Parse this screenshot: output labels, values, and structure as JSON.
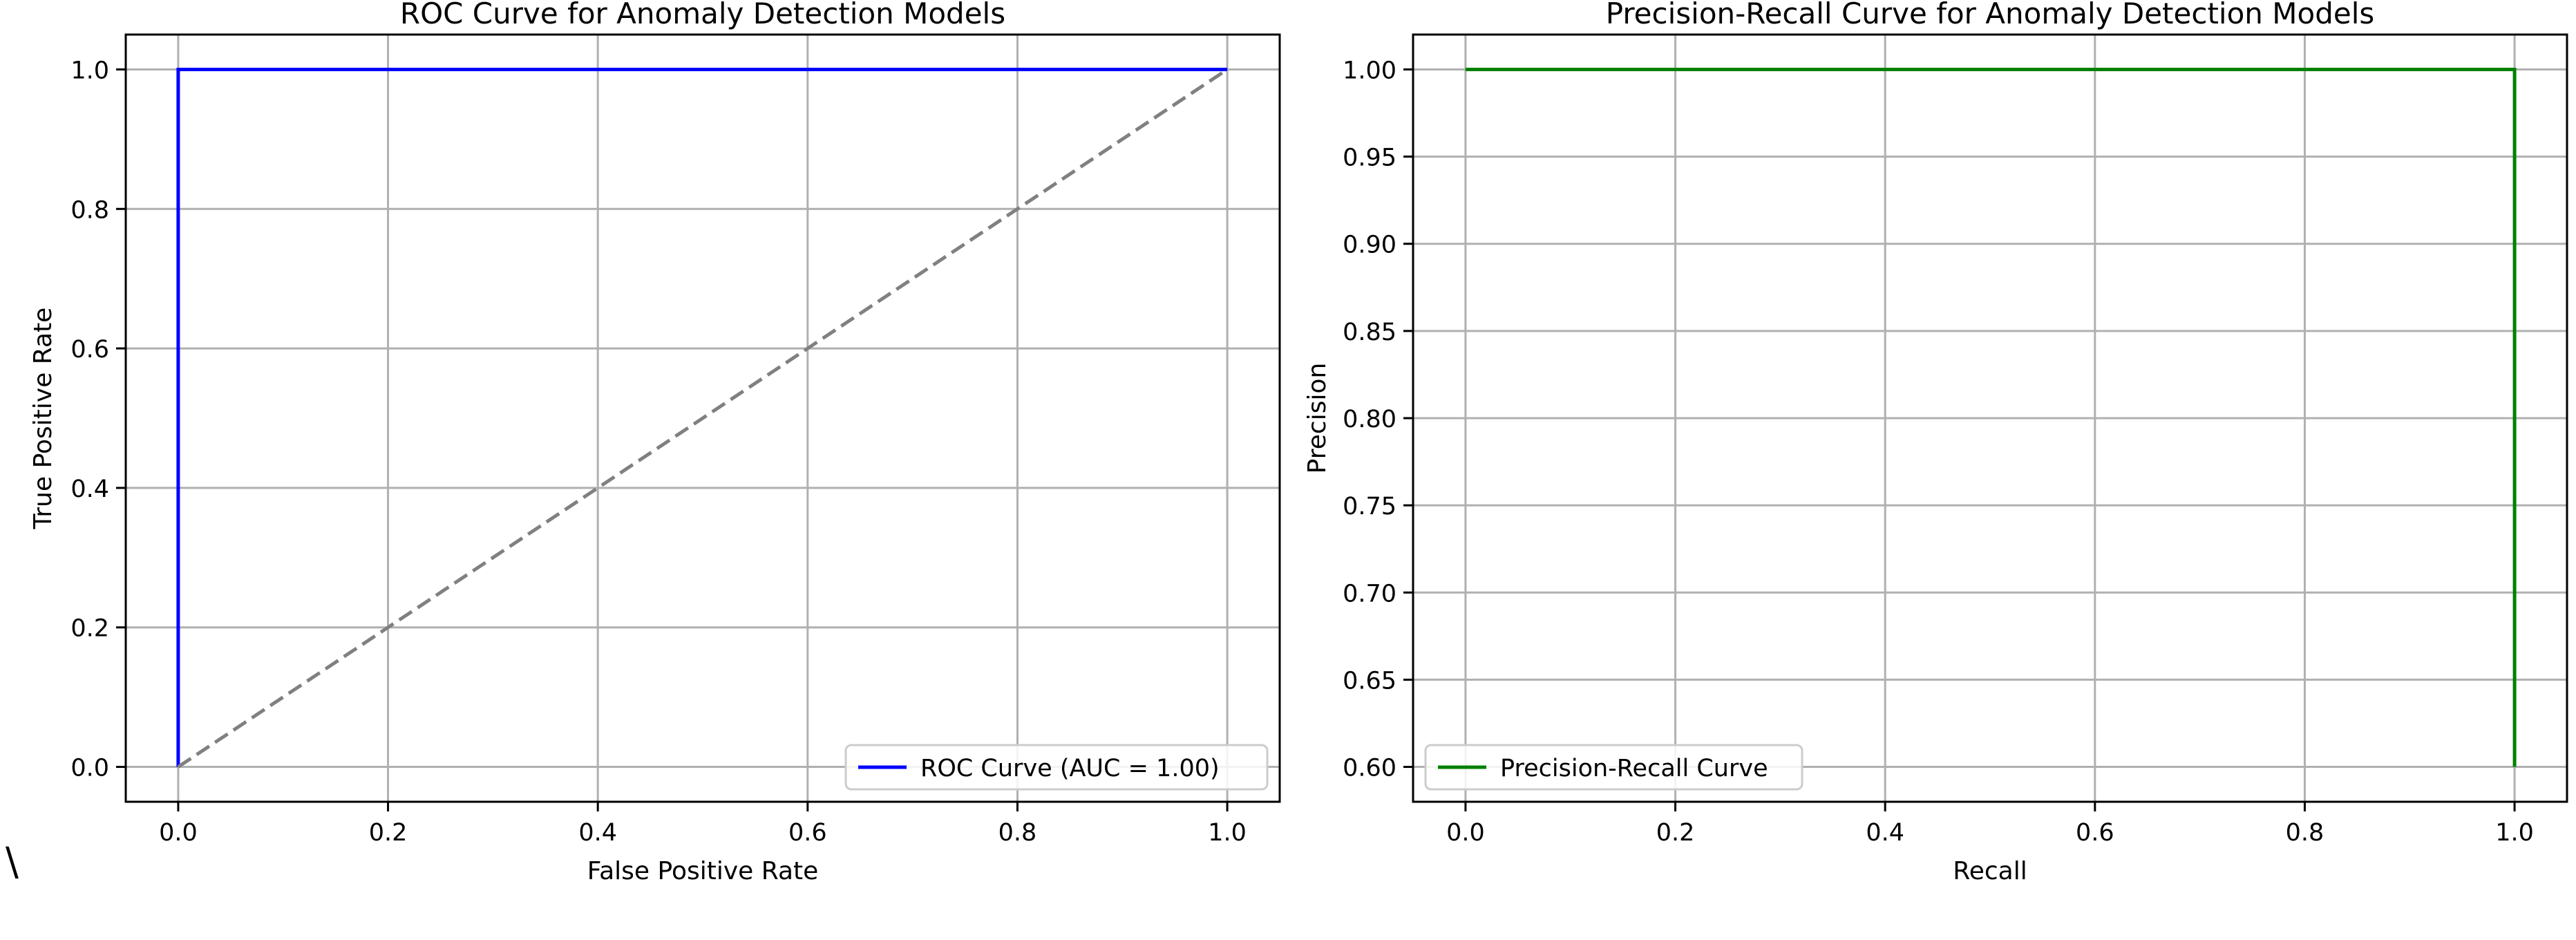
{
  "chart_data": [
    {
      "type": "line",
      "title": "ROC Curve for Anomaly Detection Models",
      "xlabel": "False Positive Rate",
      "ylabel": "True Positive Rate",
      "xlim": [
        -0.05,
        1.05
      ],
      "ylim": [
        -0.05,
        1.05
      ],
      "xticks": [
        "0.0",
        "0.2",
        "0.4",
        "0.6",
        "0.8",
        "1.0"
      ],
      "yticks": [
        "0.0",
        "0.2",
        "0.4",
        "0.6",
        "0.8",
        "1.0"
      ],
      "grid": true,
      "legend_position": "lower-right",
      "series": [
        {
          "name": "ROC Curve (AUC = 1.00)",
          "color": "#0000ff",
          "style": "solid",
          "x": [
            0.0,
            0.0,
            1.0
          ],
          "y": [
            0.0,
            1.0,
            1.0
          ]
        },
        {
          "color": "#808080",
          "style": "dashed",
          "x": [
            0.0,
            1.0
          ],
          "y": [
            0.0,
            1.0
          ]
        }
      ]
    },
    {
      "type": "line",
      "title": "Precision-Recall Curve for Anomaly Detection Models",
      "xlabel": "Recall",
      "ylabel": "Precision",
      "xlim": [
        -0.05,
        1.05
      ],
      "ylim": [
        0.58,
        1.02
      ],
      "xticks": [
        "0.0",
        "0.2",
        "0.4",
        "0.6",
        "0.8",
        "1.0"
      ],
      "yticks": [
        "0.60",
        "0.65",
        "0.70",
        "0.75",
        "0.80",
        "0.85",
        "0.90",
        "0.95",
        "1.00"
      ],
      "grid": true,
      "legend_position": "lower-left",
      "series": [
        {
          "name": "Precision-Recall Curve",
          "color": "#008000",
          "style": "solid",
          "x": [
            0.0,
            1.0,
            1.0
          ],
          "y": [
            1.0,
            1.0,
            0.6
          ]
        }
      ]
    }
  ],
  "stray_mark": "\\"
}
